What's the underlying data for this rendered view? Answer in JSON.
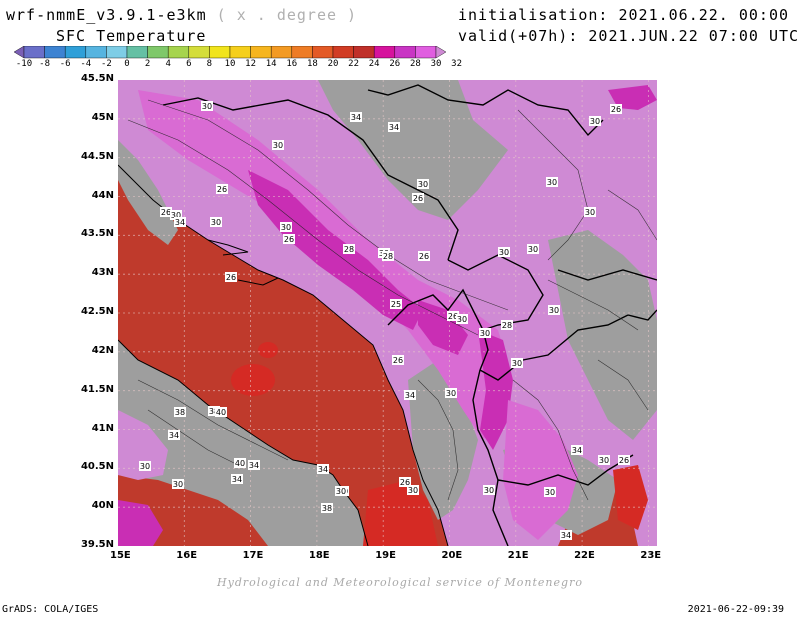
{
  "header": {
    "model": "wrf-nmmE_v3.9.1-e3km",
    "units": "( x . degree )",
    "variable": "SFC Temperature",
    "init": "initialisation: 2021.06.22. 00:00 UTC",
    "valid": "valid(+07h): 2021.JUN.22 07:00 UTC"
  },
  "colorbar": {
    "ticks": [
      "-10",
      "-8",
      "-6",
      "-4",
      "-2",
      "0",
      "2",
      "4",
      "6",
      "8",
      "10",
      "12",
      "14",
      "16",
      "18",
      "20",
      "22",
      "24",
      "26",
      "28",
      "30",
      "32"
    ],
    "colors": [
      "#7a5fb5",
      "#6a6fc9",
      "#3d83d2",
      "#2f9fd8",
      "#56b4e0",
      "#7ecde6",
      "#65c0a4",
      "#7fc86a",
      "#a6d44e",
      "#d4dd3a",
      "#f1e41c",
      "#f5cf1c",
      "#f6b51f",
      "#f39a23",
      "#ee7c25",
      "#e35a26",
      "#d13c24",
      "#c0302a",
      "#d6139d",
      "#c935c4",
      "#e05ee0",
      "#cf8ad4"
    ]
  },
  "map": {
    "lat_labels": [
      "45.5N",
      "45N",
      "44.5N",
      "44N",
      "43.5N",
      "43N",
      "42.5N",
      "42N",
      "41.5N",
      "41N",
      "40.5N",
      "40N",
      "39.5N"
    ],
    "lon_labels": [
      "15E",
      "16E",
      "17E",
      "18E",
      "19E",
      "20E",
      "21E",
      "22E",
      "23E"
    ],
    "colors": {
      "sea": "#bf3a2c",
      "land_warm": "#d96bd3",
      "land_hot": "#c92eb4",
      "land_mild": "#cf8ad4",
      "land_cool": "#9e9e9e",
      "hotspot": "#d52a24"
    },
    "contour_labels": [
      {
        "t": "26"
      },
      {
        "t": "30"
      },
      {
        "t": "30"
      },
      {
        "t": "34"
      },
      {
        "t": "34"
      },
      {
        "t": "30"
      },
      {
        "t": "26"
      },
      {
        "t": "30"
      },
      {
        "t": "26"
      },
      {
        "t": "30"
      },
      {
        "t": "30"
      },
      {
        "t": "26"
      },
      {
        "t": "30"
      },
      {
        "t": "34"
      },
      {
        "t": "30"
      },
      {
        "t": "26"
      },
      {
        "t": "28"
      },
      {
        "t": "30"
      },
      {
        "t": "26"
      },
      {
        "t": "28"
      },
      {
        "t": "30"
      },
      {
        "t": "30"
      },
      {
        "t": "30"
      },
      {
        "t": "26"
      },
      {
        "t": "25"
      },
      {
        "t": "30"
      },
      {
        "t": "26"
      },
      {
        "t": "28"
      },
      {
        "t": "30"
      },
      {
        "t": "30"
      },
      {
        "t": "26"
      },
      {
        "t": "30"
      },
      {
        "t": "34"
      },
      {
        "t": "30"
      },
      {
        "t": "38"
      },
      {
        "t": "38"
      },
      {
        "t": "40"
      },
      {
        "t": "34"
      },
      {
        "t": "30"
      },
      {
        "t": "34"
      },
      {
        "t": "30"
      },
      {
        "t": "34"
      },
      {
        "t": "40"
      },
      {
        "t": "34"
      },
      {
        "t": "30"
      },
      {
        "t": "26"
      },
      {
        "t": "30"
      },
      {
        "t": "38"
      },
      {
        "t": "30"
      },
      {
        "t": "30"
      },
      {
        "t": "34"
      },
      {
        "t": "30"
      },
      {
        "t": "26"
      },
      {
        "t": "30"
      },
      {
        "t": "34"
      }
    ]
  },
  "footer": {
    "credit": "Hydrological and Meteorological service of Montenegro",
    "grads": "GrADS: COLA/IGES",
    "timestamp": "2021-06-22-09:39"
  }
}
